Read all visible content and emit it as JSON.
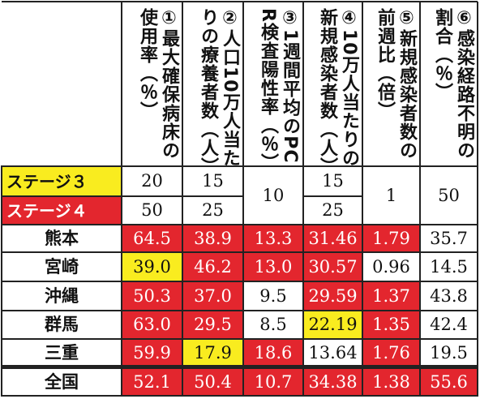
{
  "headers": [
    {
      "id": "h1",
      "lines": [
        "①最大確保病床の",
        "使用率（％）"
      ]
    },
    {
      "id": "h2",
      "lines": [
        "②人口10万人当た",
        "りの療養者数（人）"
      ]
    },
    {
      "id": "h3",
      "lines": [
        "③1週間平均のPC",
        "R検査陽性率（％）"
      ]
    },
    {
      "id": "h4",
      "lines": [
        "④10万人当たりの",
        "新規感染者数（人）"
      ]
    },
    {
      "id": "h5",
      "lines": [
        "⑤新規感染者数の",
        "前週比（倍）"
      ]
    },
    {
      "id": "h6",
      "lines": [
        "⑥感染経路不明の",
        "割合（％）"
      ]
    }
  ],
  "stages": {
    "stage3_label": "ステージ３",
    "stage4_label": "ステージ４",
    "s3_c1": "20",
    "s4_c1": "50",
    "s3_c2": "15",
    "s4_c2": "25",
    "c3": "10",
    "s3_c4": "15",
    "s4_c4": "25",
    "c5": "1",
    "c6": "50"
  },
  "rows": [
    {
      "name": "熊本",
      "values": [
        "64.5",
        "38.9",
        "13.3",
        "31.46",
        "1.79",
        "35.7"
      ],
      "fill": [
        "red",
        "red",
        "red",
        "red",
        "red",
        "none"
      ]
    },
    {
      "name": "宮崎",
      "values": [
        "39.0",
        "46.2",
        "13.0",
        "30.57",
        "0.96",
        "14.5"
      ],
      "fill": [
        "yellow",
        "red",
        "red",
        "red",
        "none",
        "none"
      ]
    },
    {
      "name": "沖縄",
      "values": [
        "50.3",
        "37.0",
        "9.5",
        "29.59",
        "1.37",
        "43.8"
      ],
      "fill": [
        "red",
        "red",
        "none",
        "red",
        "red",
        "none"
      ]
    },
    {
      "name": "群馬",
      "values": [
        "63.0",
        "29.5",
        "8.5",
        "22.19",
        "1.35",
        "42.4"
      ],
      "fill": [
        "red",
        "red",
        "none",
        "yellow",
        "red",
        "none"
      ]
    },
    {
      "name": "三重",
      "values": [
        "59.9",
        "17.9",
        "18.6",
        "13.64",
        "1.76",
        "19.5"
      ],
      "fill": [
        "red",
        "yellow",
        "red",
        "none",
        "red",
        "none"
      ]
    }
  ],
  "total": {
    "name": "全国",
    "values": [
      "52.1",
      "50.4",
      "10.7",
      "34.38",
      "1.38",
      "55.6"
    ],
    "fill": [
      "red",
      "red",
      "red",
      "red",
      "red",
      "red"
    ]
  },
  "colors": {
    "red": "#e3262e",
    "yellow": "#f9ec1f"
  }
}
